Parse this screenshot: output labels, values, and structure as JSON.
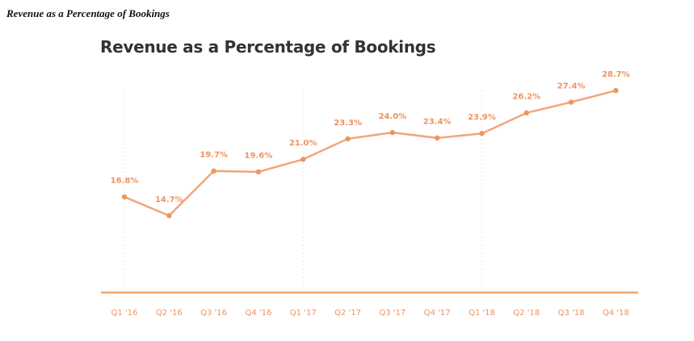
{
  "page": {
    "caption": "Revenue as a Percentage of Bookings"
  },
  "colors": {
    "line": "#f2a679",
    "marker": "#ee9560",
    "label": "#ee9360",
    "axis": "#f0a56f",
    "grid": "#e6e6e6",
    "title": "#333333"
  },
  "chart_data": {
    "type": "line",
    "title": "Revenue as a Percentage of Bookings",
    "xlabel": "",
    "ylabel": "",
    "categories": [
      "Q1 '16",
      "Q2 '16",
      "Q3 '16",
      "Q4 '16",
      "Q1 '17",
      "Q2 '17",
      "Q3 '17",
      "Q4 '17",
      "Q1 '18",
      "Q2 '18",
      "Q3 '18",
      "Q4 '18"
    ],
    "series": [
      {
        "values": [
          16.8,
          14.7,
          19.7,
          19.6,
          21.0,
          23.3,
          24.0,
          23.4,
          23.9,
          26.2,
          27.4,
          28.7
        ],
        "labels": [
          "16.8%",
          "14.7%",
          "19.7%",
          "19.6%",
          "21.0%",
          "23.3%",
          "24.0%",
          "23.4%",
          "23.9%",
          "26.2%",
          "27.4%",
          "28.7%"
        ]
      }
    ],
    "ylim": [
      6.1,
      31.6
    ],
    "grid": "vertical dotted lines at Q1 of each year",
    "legend": "none",
    "data_labels": "above each point"
  }
}
